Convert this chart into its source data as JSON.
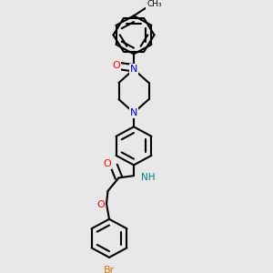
{
  "bg_color": "#e8e8e8",
  "bond_color": "#000000",
  "bond_width": 1.5,
  "atom_colors": {
    "O": "#ff0000",
    "N": "#0000cc",
    "NH": "#008080",
    "Br": "#cc7700",
    "C": "#000000"
  },
  "figsize": [
    3.0,
    3.0
  ],
  "dpi": 100
}
